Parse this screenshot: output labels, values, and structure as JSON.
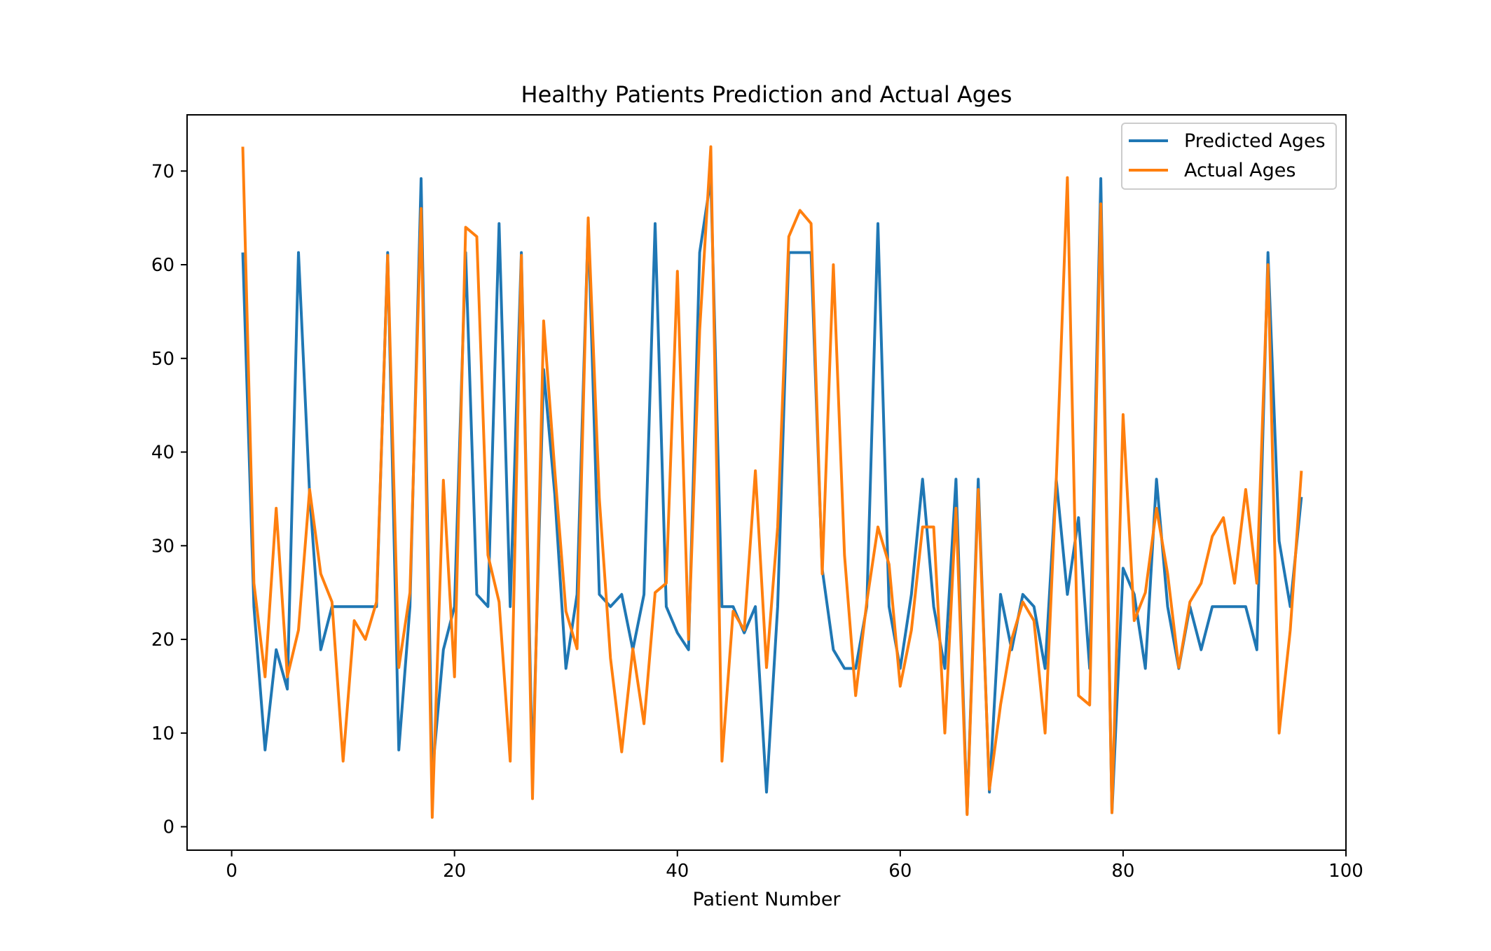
{
  "chart_data": {
    "type": "line",
    "title": "Healthy Patients Prediction and Actual Ages",
    "xlabel": "Patient Number",
    "ylabel": "",
    "xlim": [
      -4,
      100
    ],
    "ylim": [
      -2.5,
      76
    ],
    "xticks": [
      0,
      20,
      40,
      60,
      80,
      100
    ],
    "yticks": [
      0,
      10,
      20,
      30,
      40,
      50,
      60,
      70
    ],
    "grid": false,
    "legend_position": "top-right",
    "x": [
      1,
      2,
      3,
      4,
      5,
      6,
      7,
      8,
      9,
      10,
      11,
      12,
      13,
      14,
      15,
      16,
      17,
      18,
      19,
      20,
      21,
      22,
      23,
      24,
      25,
      26,
      27,
      28,
      29,
      30,
      31,
      32,
      33,
      34,
      35,
      36,
      37,
      38,
      39,
      40,
      41,
      42,
      43,
      44,
      45,
      46,
      47,
      48,
      49,
      50,
      51,
      52,
      53,
      54,
      55,
      56,
      57,
      58,
      59,
      60,
      61,
      62,
      63,
      64,
      65,
      66,
      67,
      68,
      69,
      70,
      71,
      72,
      73,
      74,
      75,
      76,
      77,
      78,
      79,
      80,
      81,
      82,
      83,
      84,
      85,
      86,
      87,
      88,
      89,
      90,
      91,
      92,
      93,
      94,
      95,
      96
    ],
    "series": [
      {
        "name": "Predicted Ages",
        "color": "#1f77b4",
        "values": [
          61.3,
          23.5,
          8.2,
          18.9,
          14.7,
          61.3,
          35.5,
          18.9,
          23.5,
          23.5,
          23.5,
          23.5,
          23.5,
          61.3,
          8.2,
          23.5,
          69.2,
          5.5,
          18.9,
          23.5,
          61.3,
          24.8,
          23.5,
          64.4,
          23.5,
          61.3,
          5.5,
          48.8,
          35.5,
          16.9,
          24.8,
          64.4,
          24.8,
          23.5,
          24.8,
          18.9,
          24.8,
          64.4,
          23.5,
          20.7,
          18.9,
          61.3,
          69.2,
          23.5,
          23.5,
          20.7,
          23.5,
          3.7,
          23.5,
          61.3,
          61.3,
          61.3,
          27.5,
          18.9,
          16.9,
          16.9,
          23.5,
          64.4,
          23.5,
          16.9,
          24.8,
          37.1,
          23.5,
          16.9,
          37.1,
          1.4,
          37.1,
          3.7,
          24.8,
          18.9,
          24.8,
          23.5,
          16.9,
          37.1,
          24.8,
          33.0,
          16.9,
          69.2,
          1.5,
          27.6,
          24.8,
          16.9,
          37.1,
          23.5,
          16.9,
          23.5,
          18.9,
          23.5,
          23.5,
          23.5,
          23.5,
          18.9,
          61.3,
          30.5,
          23.5,
          35.2
        ]
      },
      {
        "name": "Actual Ages",
        "color": "#ff7f0e",
        "values": [
          72.6,
          26.0,
          16.0,
          34.0,
          16.0,
          21.0,
          36.0,
          27.0,
          24.0,
          7.0,
          22.0,
          20.0,
          24.0,
          61.0,
          17.0,
          25.0,
          66.0,
          1.0,
          37.0,
          16.0,
          64.0,
          63.0,
          29.0,
          24.0,
          7.0,
          61.0,
          3.0,
          54.0,
          38.0,
          23.0,
          19.0,
          65.0,
          35.0,
          18.0,
          8.0,
          19.0,
          11.0,
          25.0,
          26.0,
          59.3,
          20.0,
          53.0,
          72.6,
          7.0,
          23.0,
          21.0,
          38.0,
          17.0,
          32.0,
          63.0,
          65.8,
          64.4,
          27.0,
          60.0,
          29.0,
          14.0,
          24.0,
          32.0,
          28.0,
          15.0,
          21.0,
          32.0,
          32.0,
          10.0,
          34.0,
          1.3,
          36.0,
          4.0,
          13.0,
          20.0,
          24.0,
          22.0,
          10.0,
          37.0,
          69.3,
          14.0,
          13.0,
          66.5,
          1.5,
          44.0,
          22.0,
          25.0,
          34.0,
          27.0,
          17.0,
          24.0,
          26.0,
          31.0,
          33.0,
          26.0,
          36.0,
          26.0,
          60.0,
          10.0,
          21.0,
          38.0
        ]
      }
    ]
  }
}
